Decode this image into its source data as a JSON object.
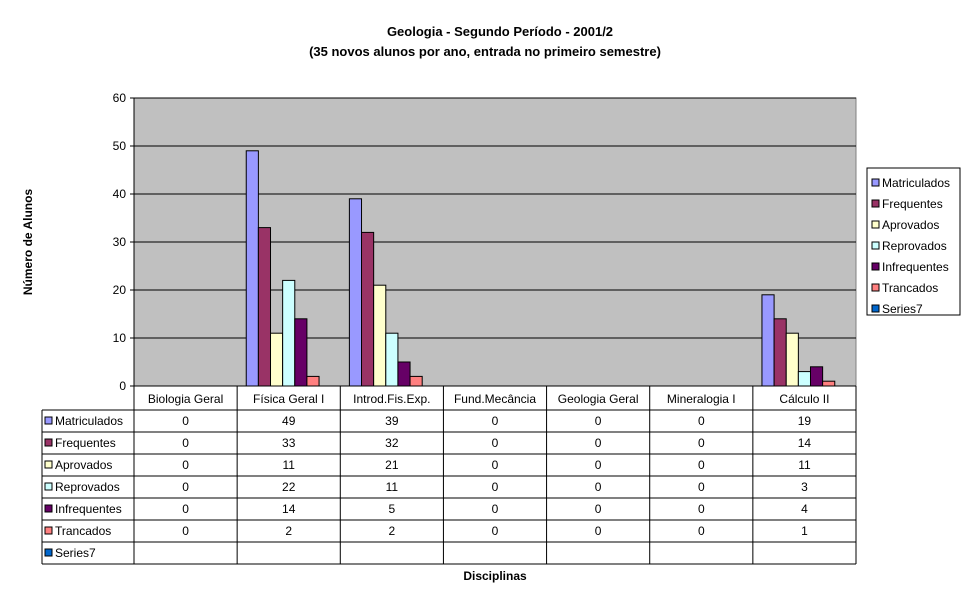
{
  "chart_data": {
    "type": "bar",
    "title": "Geologia - Segundo Período - 2001/2",
    "subtitle": "(35 novos alunos por ano, entrada no primeiro semestre)",
    "xlabel": "Disciplinas",
    "ylabel": "Número de Alunos",
    "ylim": [
      0,
      60
    ],
    "yticks": [
      0,
      10,
      20,
      30,
      40,
      50,
      60
    ],
    "grid": true,
    "legend_position": "right",
    "data_table": true,
    "categories": [
      "Biologia Geral",
      "Física Geral I",
      "Introd.Fis.Exp.",
      "Fund.Mecância",
      "Geologia Geral",
      "Mineralogia I",
      "Cálculo II"
    ],
    "series": [
      {
        "name": "Matriculados",
        "color": "#9999FF",
        "values": [
          0,
          49,
          39,
          0,
          0,
          0,
          19
        ]
      },
      {
        "name": "Frequentes",
        "color": "#993366",
        "values": [
          0,
          33,
          32,
          0,
          0,
          0,
          14
        ]
      },
      {
        "name": "Aprovados",
        "color": "#FFFFCC",
        "values": [
          0,
          11,
          21,
          0,
          0,
          0,
          11
        ]
      },
      {
        "name": "Reprovados",
        "color": "#CCFFFF",
        "values": [
          0,
          22,
          11,
          0,
          0,
          0,
          3
        ]
      },
      {
        "name": "Infrequentes",
        "color": "#660066",
        "values": [
          0,
          14,
          5,
          0,
          0,
          0,
          4
        ]
      },
      {
        "name": "Trancados",
        "color": "#FF8080",
        "values": [
          0,
          2,
          2,
          0,
          0,
          0,
          1
        ]
      },
      {
        "name": "Series7",
        "color": "#0066CC",
        "values": [
          null,
          null,
          null,
          null,
          null,
          null,
          null
        ]
      }
    ],
    "plot_background": "#C0C0C0"
  }
}
